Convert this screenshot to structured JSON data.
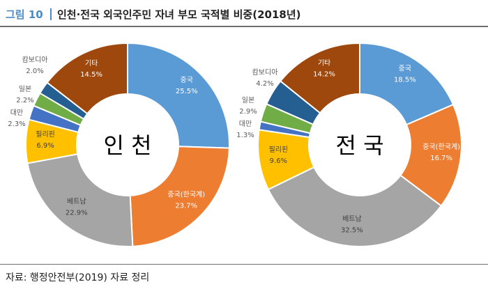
{
  "header": {
    "figure_number": "그림 10",
    "title": "인천·전국 외국인주민 자녀 부모 국적별 비중(2018년)"
  },
  "source": "자료: 행정안전부(2019) 자료 정리",
  "colors": {
    "china": "#5b9bd5",
    "korean_chinese": "#ed7d31",
    "vietnam": "#a5a5a5",
    "philippines": "#ffc000",
    "taiwan": "#4472c4",
    "japan": "#70ad47",
    "cambodia": "#255e91",
    "other": "#9e480e"
  },
  "chart_data": [
    {
      "type": "donut",
      "center_label": "인 천",
      "slices": [
        {
          "label": "중국",
          "value": 25.5,
          "display": "25.5%",
          "color_key": "china"
        },
        {
          "label": "중국(한국계)",
          "value": 23.7,
          "display": "23.7%",
          "color_key": "korean_chinese"
        },
        {
          "label": "베트남",
          "value": 22.9,
          "display": "22.9%",
          "color_key": "vietnam"
        },
        {
          "label": "필리핀",
          "value": 6.9,
          "display": "6.9%",
          "color_key": "philippines"
        },
        {
          "label": "대만",
          "value": 2.3,
          "display": "2.3%",
          "color_key": "taiwan"
        },
        {
          "label": "일본",
          "value": 2.2,
          "display": "2.2%",
          "color_key": "japan"
        },
        {
          "label": "캄보디아",
          "value": 2.0,
          "display": "2.0%",
          "color_key": "cambodia"
        },
        {
          "label": "기타",
          "value": 14.5,
          "display": "14.5%",
          "color_key": "other"
        }
      ]
    },
    {
      "type": "donut",
      "center_label": "전 국",
      "slices": [
        {
          "label": "중국",
          "value": 18.5,
          "display": "18.5%",
          "color_key": "china"
        },
        {
          "label": "중국(한국계)",
          "value": 16.7,
          "display": "16.7%",
          "color_key": "korean_chinese"
        },
        {
          "label": "베트남",
          "value": 32.5,
          "display": "32.5%",
          "color_key": "vietnam"
        },
        {
          "label": "필리핀",
          "value": 9.6,
          "display": "9.6%",
          "color_key": "philippines"
        },
        {
          "label": "대만",
          "value": 1.3,
          "display": "1.3%",
          "color_key": "taiwan"
        },
        {
          "label": "일본",
          "value": 2.9,
          "display": "2.9%",
          "color_key": "japan"
        },
        {
          "label": "캄보디아",
          "value": 4.2,
          "display": "4.2%",
          "color_key": "cambodia"
        },
        {
          "label": "기타",
          "value": 14.2,
          "display": "14.2%",
          "color_key": "other"
        }
      ]
    }
  ]
}
